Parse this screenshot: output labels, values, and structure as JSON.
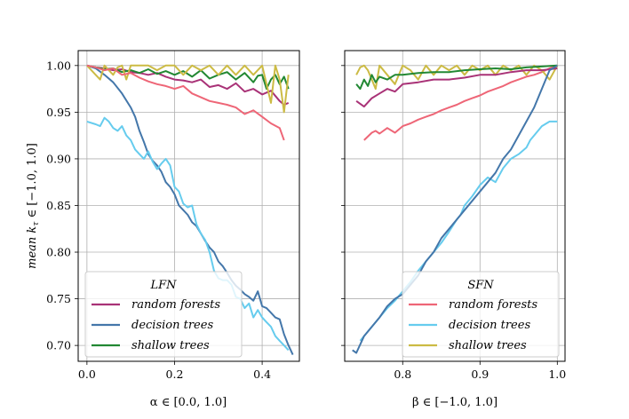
{
  "chart_data": [
    {
      "type": "line",
      "title": "",
      "ylabel": "mean k_τ ∈ [−1.0, 1.0]",
      "ylabel_parts": {
        "prefix": "mean ",
        "var": "k",
        "sub": "τ",
        "suffix": " ∈ [−1.0, 1.0]"
      },
      "xlabel": "α ∈ [0.0, 1.0]",
      "xlim": [
        -0.02,
        0.485
      ],
      "ylim": [
        0.683,
        1.016
      ],
      "xticks": [
        "0.0",
        "0.2",
        "0.4"
      ],
      "xtick_values": [
        0.0,
        0.2,
        0.4
      ],
      "yticks": [
        "0.70",
        "0.75",
        "0.80",
        "0.85",
        "0.90",
        "0.95",
        "1.00"
      ],
      "ytick_values": [
        0.7,
        0.75,
        0.8,
        0.85,
        0.9,
        0.95,
        1.0
      ],
      "grid": true,
      "legend": {
        "title": "LFN",
        "placement": "lower-center"
      },
      "series": [
        {
          "name": "random forests",
          "color": "#a93277",
          "x": [
            0.0,
            0.02,
            0.04,
            0.06,
            0.08,
            0.1,
            0.12,
            0.14,
            0.16,
            0.18,
            0.2,
            0.22,
            0.24,
            0.26,
            0.28,
            0.3,
            0.32,
            0.34,
            0.36,
            0.38,
            0.4,
            0.42,
            0.44,
            0.45,
            0.46
          ],
          "y": [
            1.0,
            0.998,
            0.997,
            0.995,
            0.996,
            0.993,
            0.992,
            0.99,
            0.992,
            0.988,
            0.985,
            0.984,
            0.982,
            0.985,
            0.977,
            0.979,
            0.975,
            0.981,
            0.972,
            0.975,
            0.969,
            0.973,
            0.962,
            0.958,
            0.96
          ]
        },
        {
          "name": "decision trees",
          "color": "#4477aa",
          "x": [
            0.0,
            0.02,
            0.04,
            0.06,
            0.08,
            0.1,
            0.11,
            0.12,
            0.13,
            0.14,
            0.15,
            0.16,
            0.17,
            0.18,
            0.19,
            0.2,
            0.21,
            0.22,
            0.23,
            0.24,
            0.25,
            0.26,
            0.27,
            0.28,
            0.29,
            0.3,
            0.31,
            0.32,
            0.33,
            0.34,
            0.35,
            0.36,
            0.37,
            0.38,
            0.39,
            0.4,
            0.41,
            0.42,
            0.43,
            0.44,
            0.45,
            0.46,
            0.47
          ],
          "y": [
            1.0,
            0.997,
            0.99,
            0.982,
            0.97,
            0.955,
            0.945,
            0.93,
            0.918,
            0.905,
            0.898,
            0.893,
            0.886,
            0.875,
            0.87,
            0.862,
            0.85,
            0.845,
            0.84,
            0.832,
            0.828,
            0.82,
            0.812,
            0.805,
            0.8,
            0.79,
            0.785,
            0.778,
            0.77,
            0.764,
            0.76,
            0.755,
            0.752,
            0.748,
            0.758,
            0.742,
            0.74,
            0.735,
            0.73,
            0.728,
            0.712,
            0.7,
            0.69
          ]
        },
        {
          "name": "shallow trees",
          "color": "#228833",
          "x": [
            0.0,
            0.02,
            0.04,
            0.06,
            0.08,
            0.1,
            0.12,
            0.14,
            0.16,
            0.18,
            0.2,
            0.22,
            0.24,
            0.26,
            0.28,
            0.3,
            0.32,
            0.34,
            0.36,
            0.38,
            0.39,
            0.4,
            0.41,
            0.42,
            0.43,
            0.44,
            0.45,
            0.46
          ],
          "y": [
            1.0,
            0.998,
            0.996,
            0.997,
            0.993,
            0.995,
            0.992,
            0.996,
            0.991,
            0.994,
            0.99,
            0.994,
            0.988,
            0.995,
            0.986,
            0.99,
            0.993,
            0.985,
            0.992,
            0.982,
            0.989,
            0.99,
            0.975,
            0.985,
            0.99,
            0.98,
            0.988,
            0.975
          ]
        },
        {
          "name": "yellow",
          "color": "#ccbb44",
          "x": [
            0.0,
            0.01,
            0.02,
            0.03,
            0.04,
            0.05,
            0.06,
            0.07,
            0.08,
            0.09,
            0.1,
            0.12,
            0.14,
            0.16,
            0.18,
            0.2,
            0.22,
            0.24,
            0.26,
            0.28,
            0.3,
            0.32,
            0.34,
            0.36,
            0.38,
            0.4,
            0.42,
            0.43,
            0.44,
            0.45,
            0.46
          ],
          "y": [
            1.0,
            0.995,
            0.99,
            0.985,
            1.0,
            0.995,
            0.99,
            0.998,
            1.0,
            0.985,
            1.0,
            1.0,
            1.0,
            0.995,
            1.0,
            1.0,
            0.99,
            1.0,
            0.995,
            1.0,
            0.99,
            1.0,
            0.99,
            1.0,
            0.99,
            1.0,
            0.96,
            1.0,
            0.985,
            0.95,
            0.99
          ]
        },
        {
          "name": "pink",
          "color": "#ee6677",
          "x": [
            0.0,
            0.02,
            0.04,
            0.06,
            0.08,
            0.1,
            0.12,
            0.14,
            0.16,
            0.18,
            0.2,
            0.22,
            0.24,
            0.26,
            0.28,
            0.3,
            0.32,
            0.34,
            0.36,
            0.38,
            0.4,
            0.42,
            0.44,
            0.45
          ],
          "y": [
            1.0,
            0.998,
            0.995,
            0.997,
            0.99,
            0.992,
            0.987,
            0.983,
            0.98,
            0.978,
            0.975,
            0.978,
            0.97,
            0.966,
            0.962,
            0.96,
            0.958,
            0.955,
            0.948,
            0.952,
            0.945,
            0.938,
            0.933,
            0.92
          ]
        },
        {
          "name": "cyan",
          "color": "#66ccee",
          "x": [
            0.0,
            0.02,
            0.03,
            0.04,
            0.05,
            0.06,
            0.07,
            0.08,
            0.09,
            0.1,
            0.11,
            0.12,
            0.13,
            0.14,
            0.15,
            0.16,
            0.17,
            0.18,
            0.19,
            0.2,
            0.21,
            0.22,
            0.23,
            0.24,
            0.25,
            0.26,
            0.27,
            0.28,
            0.29,
            0.3,
            0.31,
            0.32,
            0.33,
            0.34,
            0.35,
            0.36,
            0.37,
            0.38,
            0.39,
            0.4,
            0.41,
            0.42,
            0.43,
            0.44,
            0.45,
            0.46
          ],
          "y": [
            0.94,
            0.937,
            0.935,
            0.944,
            0.94,
            0.933,
            0.93,
            0.935,
            0.925,
            0.92,
            0.91,
            0.905,
            0.9,
            0.908,
            0.897,
            0.889,
            0.895,
            0.9,
            0.893,
            0.87,
            0.865,
            0.852,
            0.848,
            0.85,
            0.83,
            0.82,
            0.813,
            0.8,
            0.78,
            0.772,
            0.77,
            0.77,
            0.765,
            0.752,
            0.75,
            0.74,
            0.745,
            0.73,
            0.738,
            0.73,
            0.725,
            0.72,
            0.71,
            0.705,
            0.7,
            0.695
          ]
        }
      ]
    },
    {
      "type": "line",
      "title": "",
      "xlabel": "β ∈ [−1.0, 1.0]",
      "xlim": [
        0.725,
        1.01
      ],
      "ylim": [
        0.683,
        1.016
      ],
      "xticks": [
        "0.8",
        "0.9",
        "1.0"
      ],
      "xtick_values": [
        0.8,
        0.9,
        1.0
      ],
      "grid": true,
      "legend": {
        "title": "SFN",
        "placement": "lower-right"
      },
      "series": [
        {
          "name": "random forests",
          "color": "#ee6677",
          "x": [
            0.75,
            0.76,
            0.765,
            0.77,
            0.78,
            0.79,
            0.8,
            0.81,
            0.82,
            0.83,
            0.84,
            0.85,
            0.86,
            0.87,
            0.88,
            0.89,
            0.9,
            0.91,
            0.92,
            0.93,
            0.94,
            0.95,
            0.96,
            0.97,
            0.98,
            0.99,
            1.0
          ],
          "y": [
            0.92,
            0.928,
            0.93,
            0.927,
            0.933,
            0.928,
            0.935,
            0.938,
            0.942,
            0.945,
            0.948,
            0.952,
            0.955,
            0.958,
            0.962,
            0.965,
            0.968,
            0.972,
            0.975,
            0.978,
            0.982,
            0.985,
            0.988,
            0.99,
            0.993,
            0.997,
            1.0
          ]
        },
        {
          "name": "decision trees",
          "color": "#66ccee",
          "x": [
            0.745,
            0.75,
            0.76,
            0.77,
            0.78,
            0.79,
            0.8,
            0.81,
            0.82,
            0.83,
            0.84,
            0.85,
            0.86,
            0.87,
            0.875,
            0.88,
            0.89,
            0.9,
            0.91,
            0.92,
            0.93,
            0.94,
            0.95,
            0.96,
            0.965,
            0.97,
            0.98,
            0.99,
            1.0
          ],
          "y": [
            0.705,
            0.71,
            0.72,
            0.73,
            0.74,
            0.748,
            0.758,
            0.768,
            0.78,
            0.79,
            0.8,
            0.81,
            0.822,
            0.835,
            0.84,
            0.85,
            0.86,
            0.872,
            0.88,
            0.875,
            0.89,
            0.9,
            0.905,
            0.912,
            0.92,
            0.925,
            0.935,
            0.94,
            0.94
          ]
        },
        {
          "name": "shallow trees",
          "color": "#ccbb44",
          "x": [
            0.74,
            0.745,
            0.75,
            0.755,
            0.76,
            0.765,
            0.77,
            0.78,
            0.79,
            0.8,
            0.81,
            0.82,
            0.83,
            0.84,
            0.85,
            0.86,
            0.87,
            0.88,
            0.89,
            0.9,
            0.91,
            0.92,
            0.93,
            0.94,
            0.95,
            0.96,
            0.97,
            0.98,
            0.99,
            1.0
          ],
          "y": [
            0.99,
            0.998,
            1.0,
            0.995,
            0.985,
            0.975,
            1.0,
            0.99,
            0.98,
            1.0,
            0.995,
            0.985,
            1.0,
            0.99,
            1.0,
            0.995,
            1.0,
            0.99,
            1.0,
            0.995,
            1.0,
            0.99,
            1.0,
            0.995,
            1.0,
            0.99,
            1.0,
            0.995,
            0.985,
            1.0
          ]
        },
        {
          "name": "purple",
          "color": "#a93277",
          "x": [
            0.74,
            0.75,
            0.76,
            0.77,
            0.78,
            0.79,
            0.8,
            0.82,
            0.84,
            0.86,
            0.88,
            0.9,
            0.92,
            0.94,
            0.96,
            0.98,
            1.0
          ],
          "y": [
            0.962,
            0.956,
            0.965,
            0.97,
            0.975,
            0.972,
            0.98,
            0.982,
            0.985,
            0.985,
            0.987,
            0.99,
            0.99,
            0.993,
            0.995,
            0.995,
            0.997
          ]
        },
        {
          "name": "green",
          "color": "#228833",
          "x": [
            0.74,
            0.745,
            0.75,
            0.755,
            0.76,
            0.765,
            0.77,
            0.78,
            0.79,
            0.8,
            0.82,
            0.84,
            0.86,
            0.88,
            0.9,
            0.92,
            0.94,
            0.96,
            0.98,
            1.0
          ],
          "y": [
            0.98,
            0.975,
            0.985,
            0.978,
            0.99,
            0.982,
            0.988,
            0.985,
            0.99,
            0.99,
            0.992,
            0.993,
            0.993,
            0.995,
            0.996,
            0.997,
            0.996,
            0.998,
            0.999,
            1.0
          ]
        },
        {
          "name": "blue",
          "color": "#4477aa",
          "x": [
            0.735,
            0.74,
            0.75,
            0.76,
            0.77,
            0.78,
            0.79,
            0.8,
            0.81,
            0.82,
            0.83,
            0.84,
            0.85,
            0.86,
            0.87,
            0.88,
            0.89,
            0.9,
            0.91,
            0.92,
            0.93,
            0.94,
            0.95,
            0.96,
            0.97,
            0.98,
            0.99,
            1.0
          ],
          "y": [
            0.695,
            0.692,
            0.71,
            0.72,
            0.73,
            0.742,
            0.75,
            0.755,
            0.765,
            0.775,
            0.79,
            0.8,
            0.815,
            0.825,
            0.835,
            0.845,
            0.855,
            0.865,
            0.875,
            0.885,
            0.9,
            0.91,
            0.925,
            0.94,
            0.955,
            0.975,
            0.995,
            1.0
          ]
        }
      ]
    }
  ],
  "legends": [
    {
      "title": "LFN",
      "entries": [
        {
          "label": "random forests",
          "color": "#a93277"
        },
        {
          "label": "decision trees",
          "color": "#4477aa"
        },
        {
          "label": "shallow trees",
          "color": "#228833"
        }
      ]
    },
    {
      "title": "SFN",
      "entries": [
        {
          "label": "random forests",
          "color": "#ee6677"
        },
        {
          "label": "decision trees",
          "color": "#66ccee"
        },
        {
          "label": "shallow trees",
          "color": "#ccbb44"
        }
      ]
    }
  ]
}
